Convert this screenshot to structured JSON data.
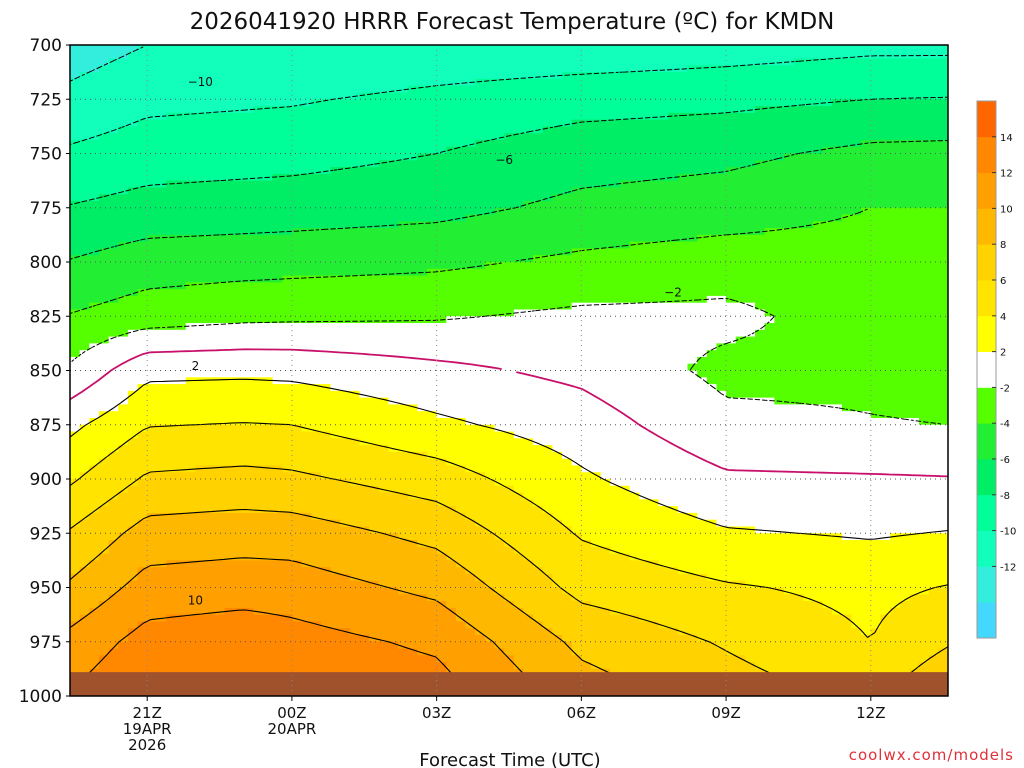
{
  "chart_data": {
    "type": "heatmap",
    "title": "2026041920 HRRR Forecast Temperature (ºC) for KMDN",
    "xlabel": "Forecast Time (UTC)",
    "ylabel": "",
    "credit": "coolwx.com/models",
    "y_ticks": [
      700,
      725,
      750,
      775,
      800,
      825,
      850,
      875,
      900,
      925,
      950,
      975,
      1000
    ],
    "y_tick_labels": [
      "700",
      "725",
      "750",
      "775",
      "800",
      "825",
      "850",
      "875",
      "900",
      "925",
      "950",
      "975",
      "1000"
    ],
    "ylim": [
      1000,
      700
    ],
    "xlim": [
      19.4,
      37.6
    ],
    "x_ticks": [
      {
        "hour": 21,
        "lines": [
          "21Z",
          "19APR",
          "2026"
        ]
      },
      {
        "hour": 24,
        "lines": [
          "00Z",
          "20APR"
        ]
      },
      {
        "hour": 27,
        "lines": [
          "03Z"
        ]
      },
      {
        "hour": 30,
        "lines": [
          "06Z"
        ]
      },
      {
        "hour": 33,
        "lines": [
          "09Z"
        ]
      },
      {
        "hour": 36,
        "lines": [
          "12Z"
        ]
      }
    ],
    "grid": true,
    "colorbar": {
      "levels": [
        -16,
        -14,
        -12,
        -10,
        -8,
        -6,
        -4,
        -2,
        2,
        4,
        6,
        8,
        10,
        12,
        14,
        16
      ],
      "tick_labels": [
        "-12",
        "-10",
        "-8",
        "-6",
        "-4",
        "-2",
        "2",
        "4",
        "6",
        "8",
        "10",
        "12",
        "14"
      ],
      "tick_values": [
        -12,
        -10,
        -8,
        -6,
        -4,
        -2,
        2,
        4,
        6,
        8,
        10,
        12,
        14
      ],
      "colors": [
        "#45d8ff",
        "#33eedd",
        "#11ffbb",
        "#00ff99",
        "#00ee66",
        "#22ee33",
        "#55ff00",
        "#ffffff",
        "#ffff00",
        "#ffe400",
        "#ffd200",
        "#ffb800",
        "#ff9f00",
        "#ff8800",
        "#ff6600"
      ]
    },
    "x": [
      19.4,
      20,
      21,
      22,
      23,
      24,
      25,
      26,
      27,
      28,
      29,
      30,
      31,
      32,
      33,
      34,
      35,
      36,
      37,
      37.6
    ],
    "temperature_profiles": [
      {
        "hour": 19.4,
        "p": [
          700,
          725,
          750,
          775,
          800,
          825,
          850,
          875,
          900,
          925,
          950,
          975,
          1000
        ],
        "t": [
          -13,
          -11.5,
          -9.7,
          -7.9,
          -5.9,
          -3.9,
          -1.7,
          1.5,
          3.7,
          6.2,
          8.3,
          10.6,
          12.1
        ]
      },
      {
        "hour": 21,
        "p": [
          700,
          725,
          750,
          775,
          800,
          825,
          850,
          875,
          900,
          925,
          950,
          975,
          1000
        ],
        "t": [
          -12,
          -10.5,
          -9,
          -7.3,
          -5,
          -3,
          1.5,
          3.9,
          6.3,
          8.8,
          10.8,
          12.8,
          14.2
        ]
      },
      {
        "hour": 23,
        "p": [
          700,
          725,
          750,
          775,
          800,
          825,
          850,
          875,
          900,
          925,
          950,
          975,
          1000
        ],
        "t": [
          -12,
          -10.3,
          -8.8,
          -7.1,
          -4.8,
          -2.5,
          1.6,
          4.1,
          6.6,
          9.1,
          11.1,
          13.3,
          14.4
        ]
      },
      {
        "hour": 24,
        "p": [
          700,
          725,
          750,
          775,
          800,
          825,
          850,
          875,
          900,
          925,
          950,
          975,
          1000
        ],
        "t": [
          -12,
          -10.2,
          -8.7,
          -7.0,
          -4.7,
          -2.4,
          1.5,
          4,
          6.4,
          9.0,
          11.0,
          12.8,
          14.0
        ]
      },
      {
        "hour": 27,
        "p": [
          700,
          725,
          750,
          775,
          800,
          825,
          850,
          875,
          900,
          925,
          950,
          975,
          1000
        ],
        "t": [
          -11.5,
          -9.5,
          -8.0,
          -6.6,
          -4.4,
          -2.2,
          0.5,
          2.4,
          5.0,
          7.4,
          9.5,
          11.6,
          13.0
        ]
      },
      {
        "hour": 30,
        "p": [
          700,
          725,
          750,
          775,
          800,
          825,
          850,
          875,
          900,
          925,
          950,
          975,
          1000
        ],
        "t": [
          -11.4,
          -8.8,
          -6.9,
          -5.5,
          -3.6,
          -1.6,
          -0.5,
          1.0,
          2.3,
          3.8,
          5.4,
          7.5,
          9.0
        ]
      },
      {
        "hour": 33,
        "p": [
          700,
          725,
          750,
          775,
          800,
          825,
          850,
          875,
          900,
          925,
          950,
          975,
          1000
        ],
        "t": [
          -11,
          -8.5,
          -6.5,
          -5.0,
          -3.0,
          -1.5,
          -2.5,
          -1.5,
          0.3,
          2.2,
          4.2,
          5.8,
          7.0
        ]
      },
      {
        "hour": 36,
        "p": [
          700,
          725,
          750,
          775,
          800,
          825,
          850,
          875,
          900,
          925,
          950,
          975,
          1000
        ],
        "t": [
          -10.5,
          -8.0,
          -5.5,
          -4.0,
          -3.2,
          -3.0,
          -2.4,
          -1.9,
          0.2,
          1.8,
          3.5,
          4.0,
          5.5
        ]
      },
      {
        "hour": 37.6,
        "p": [
          700,
          725,
          750,
          775,
          800,
          825,
          850,
          875,
          900,
          925,
          950,
          975,
          1000
        ],
        "t": [
          -10.5,
          -7.9,
          -5.4,
          -4.0,
          -3.2,
          -3.0,
          -2.6,
          -2.0,
          0.1,
          2.1,
          4.1,
          5.8,
          8.0
        ]
      }
    ],
    "contour_labels": [
      {
        "text": "−10",
        "hour": 22.1,
        "p": 717
      },
      {
        "text": "−6",
        "hour": 28.4,
        "p": 753
      },
      {
        "text": "−2",
        "hour": 31.9,
        "p": 814
      },
      {
        "text": "2",
        "hour": 22.0,
        "p": 848
      },
      {
        "text": "10",
        "hour": 22.0,
        "p": 956
      }
    ],
    "ground_color": "#a0522d"
  }
}
